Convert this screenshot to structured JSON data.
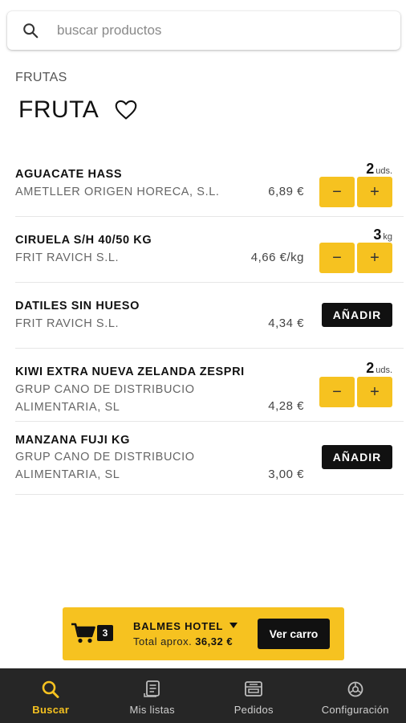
{
  "search": {
    "placeholder": "buscar productos",
    "value": ""
  },
  "category": "FRUTAS",
  "page_title": "FRUTA",
  "products": [
    {
      "name": "AGUACATE HASS",
      "supplier": "AMETLLER ORIGEN HORECA, S.L.",
      "price": "6,89 €",
      "quantity": "2",
      "unit": "uds.",
      "minus": "−",
      "plus": "+"
    },
    {
      "name": "CIRUELA S/H 40/50 KG",
      "supplier": "FRIT RAVICH S.L.",
      "price": "4,66 €/kg",
      "quantity": "3",
      "unit": "kg",
      "minus": "−",
      "plus": "+"
    },
    {
      "name": "DATILES SIN HUESO",
      "supplier": "FRIT RAVICH S.L.",
      "price": "4,34 €",
      "add_label": "AÑADIR"
    },
    {
      "name": "KIWI EXTRA NUEVA ZELANDA ZESPRI",
      "supplier": "GRUP CANO DE DISTRIBUCIO ALIMENTARIA, SL",
      "price": "4,28 €",
      "quantity": "2",
      "unit": "uds.",
      "minus": "−",
      "plus": "+"
    },
    {
      "name": "MANZANA FUJI KG",
      "supplier": "GRUP CANO DE DISTRIBUCIO ALIMENTARIA, SL",
      "price": "3,00 €",
      "add_label": "AÑADIR"
    }
  ],
  "cart": {
    "count": "3",
    "store": "BALMES HOTEL",
    "total_label": "Total aprox.",
    "total_amount": "36,32 €",
    "view_label": "Ver carro"
  },
  "nav": [
    {
      "label": "Buscar",
      "icon": "search-icon",
      "active": true
    },
    {
      "label": "Mis listas",
      "icon": "list-icon",
      "active": false
    },
    {
      "label": "Pedidos",
      "icon": "orders-icon",
      "active": false
    },
    {
      "label": "Configuración",
      "icon": "settings-icon",
      "active": false
    }
  ],
  "colors": {
    "accent": "#f6c220",
    "dark": "#111111",
    "nav_bg": "#262626"
  }
}
